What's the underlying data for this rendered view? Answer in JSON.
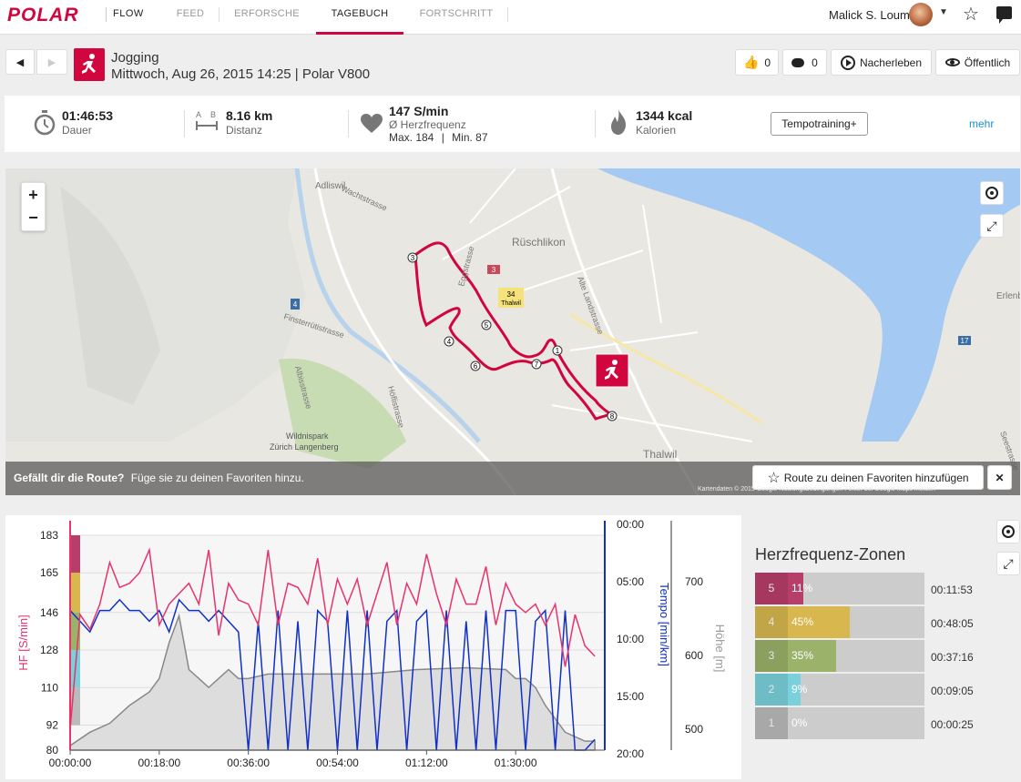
{
  "nav": {
    "logo": "POLAR",
    "brand": "FLOW",
    "tabs": [
      {
        "label": "FEED",
        "active": false
      },
      {
        "label": "ERFORSCHE",
        "active": false
      },
      {
        "label": "TAGEBUCH",
        "active": true
      },
      {
        "label": "FORTSCHRITT",
        "active": false
      }
    ],
    "user_name": "Malick S. Loum"
  },
  "session": {
    "sport": "Jogging",
    "subtitle": "Mittwoch, Aug 26, 2015 14:25 | Polar V800",
    "likes": "0",
    "comments": "0",
    "relive_label": "Nacherleben",
    "visibility_label": "Öffentlich"
  },
  "summary": {
    "duration_value": "01:46:53",
    "duration_label": "Dauer",
    "distance_value": "8.16 km",
    "distance_label": "Distanz",
    "distance_icon_letters": "A B",
    "hr_value": "147 S/min",
    "hr_label": "Ø Herzfrequenz",
    "hr_max": "Max. 184",
    "hr_min": "Min. 87",
    "calories_value": "1344 kcal",
    "calories_label": "Kalorien",
    "training_benefit": "Tempotraining+",
    "more_label": "mehr"
  },
  "map": {
    "labels": {
      "adliswil": "Adliswil",
      "ruschlikon": "Rüschlikon",
      "thalwil": "Thalwil",
      "erlen": "Erlenb",
      "wildnispark": "Wildnispark",
      "zurich_langenberg": "Zürich Langenberg",
      "wachtstrasse": "Wachtstrasse",
      "eggstrasse": "Eggstrasse",
      "finsterrüti": "Finsterrütistrasse",
      "albis": "Albisstrasse",
      "hoflistrasse": "Höflistrasse",
      "alte_landstrasse": "Alte Landstrasse",
      "seestrasse": "Seestrasse",
      "road34": "34",
      "thalwil_sign": "Thalwil",
      "road3": "3",
      "road4": "4",
      "road17": "17"
    },
    "laps": [
      "1",
      "3",
      "4",
      "5",
      "6",
      "7",
      "8"
    ],
    "favorite_prompt_bold": "Gefällt dir die Route?",
    "favorite_prompt": "Füge sie zu deinen Favoriten hinzu.",
    "favorite_button": "Route zu deinen Favoriten hinzufügen",
    "close": "✕",
    "attribution": "Kartendaten © 2015 Google   Nutzungsbedingungen   Fehler bei Google Maps melden",
    "zoom_in": "+",
    "zoom_out": "−"
  },
  "chart_data": {
    "type": "line",
    "x_ticks": [
      "00:00:00",
      "00:18:00",
      "00:36:00",
      "00:54:00",
      "01:12:00",
      "01:30:00"
    ],
    "hr_axis": {
      "label": "HF [S/min]",
      "ticks": [
        183,
        165,
        146,
        128,
        110,
        92,
        80
      ],
      "color": "#e8336b"
    },
    "pace_axis": {
      "label": "Tempo [min/km]",
      "ticks": [
        "00:00",
        "05:00",
        "10:00",
        "15:00",
        "20:00"
      ],
      "color": "#1030c8"
    },
    "alt_axis": {
      "label": "Höhe [m]",
      "ticks": [
        700,
        600,
        500
      ],
      "color": "#999999"
    },
    "series": [
      {
        "name": "HF [S/min]",
        "color": "#e8336b",
        "x_min": [
          0,
          2,
          4,
          6,
          8,
          10,
          12,
          14,
          16,
          18,
          20,
          22,
          24,
          26,
          28,
          30,
          32,
          34,
          36,
          38,
          40,
          42,
          44,
          46,
          48,
          50,
          52,
          54,
          56,
          58,
          60,
          62,
          64,
          66,
          68,
          70,
          72,
          74,
          76,
          78,
          80,
          82,
          84,
          86,
          88,
          90,
          92,
          94,
          96,
          98,
          100,
          102,
          104,
          106
        ],
        "values": [
          90,
          145,
          138,
          150,
          170,
          158,
          160,
          165,
          176,
          140,
          150,
          155,
          160,
          150,
          176,
          135,
          160,
          152,
          150,
          140,
          176,
          140,
          160,
          158,
          150,
          172,
          140,
          162,
          150,
          162,
          140,
          155,
          170,
          140,
          160,
          150,
          174,
          155,
          140,
          162,
          150,
          150,
          168,
          140,
          160,
          150,
          146,
          150,
          140,
          150,
          120,
          145,
          130,
          125
        ]
      },
      {
        "name": "Tempo [min/km]",
        "color": "#1030c8",
        "x_min": [
          0,
          2,
          4,
          6,
          8,
          10,
          12,
          14,
          16,
          18,
          20,
          22,
          24,
          26,
          28,
          30,
          32,
          34,
          36,
          38,
          40,
          42,
          44,
          46,
          48,
          50,
          52,
          54,
          56,
          58,
          60,
          62,
          64,
          66,
          68,
          70,
          72,
          74,
          76,
          78,
          80,
          82,
          84,
          86,
          88,
          90,
          92,
          94,
          96,
          98,
          100,
          102,
          104,
          106
        ],
        "values": [
          7,
          8,
          9,
          7,
          7,
          6,
          7,
          7,
          8,
          7,
          9,
          6,
          7,
          7,
          8,
          7,
          8,
          9,
          20,
          8,
          20,
          7,
          20,
          8,
          20,
          7,
          8,
          20,
          7,
          20,
          7,
          20,
          8,
          7,
          20,
          8,
          7,
          20,
          7,
          20,
          8,
          20,
          7,
          20,
          7,
          7,
          20,
          8,
          7,
          20,
          7,
          20,
          20,
          19
        ]
      },
      {
        "name": "Höhe [m]",
        "color": "#999999",
        "x_min": [
          0,
          4,
          8,
          12,
          16,
          18,
          20,
          22,
          24,
          26,
          28,
          30,
          32,
          34,
          36,
          40,
          50,
          60,
          70,
          80,
          88,
          90,
          92,
          94,
          96,
          98,
          100,
          102,
          104,
          106
        ],
        "values": [
          485,
          500,
          510,
          530,
          545,
          560,
          600,
          630,
          570,
          560,
          550,
          560,
          570,
          560,
          560,
          565,
          565,
          565,
          570,
          572,
          570,
          560,
          560,
          550,
          530,
          515,
          500,
          495,
          490,
          490
        ]
      }
    ]
  },
  "zones": {
    "title": "Herzfrequenz-Zonen",
    "rows": [
      {
        "num": "5",
        "pct": "11%",
        "fraction": 0.11,
        "time": "00:11:53",
        "color": "#b83e6a"
      },
      {
        "num": "4",
        "pct": "45%",
        "fraction": 0.45,
        "time": "00:48:05",
        "color": "#d7b74e"
      },
      {
        "num": "3",
        "pct": "35%",
        "fraction": 0.35,
        "time": "00:37:16",
        "color": "#9ab26a"
      },
      {
        "num": "2",
        "pct": "9%",
        "fraction": 0.09,
        "time": "00:09:05",
        "color": "#7ad1db"
      },
      {
        "num": "1",
        "pct": "0%",
        "fraction": 0.0,
        "time": "00:00:25",
        "color": "#bbbbbb"
      }
    ]
  }
}
